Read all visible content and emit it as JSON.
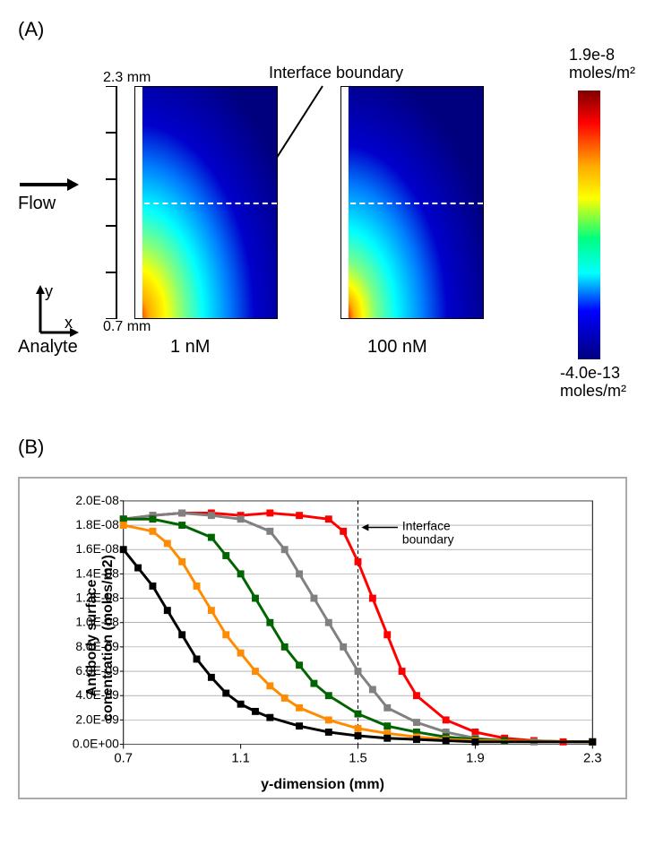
{
  "panelA": {
    "label": "(A)",
    "interface_label": "Interface boundary",
    "flow_label": "Flow",
    "y_top": "2.3 mm",
    "y_bottom": "0.7 mm",
    "analyte_label": "Analyte",
    "conc1": "1 nM",
    "conc2": "100 nM",
    "colorbar_top": "1.9e-8",
    "colorbar_top_unit": "moles/m²",
    "colorbar_bottom": "-4.0e-13",
    "colorbar_bottom_unit": "moles/m²",
    "heatmap_colors": {
      "top": "#00007f",
      "blue": "#0000ff",
      "cyan": "#00ffff",
      "yellow": "#ffff00",
      "red": "#ff0000",
      "darkred": "#7f0000"
    }
  },
  "panelB": {
    "label": "(B)",
    "ylabel": "Antibody surface\nconentration (moles/m2)",
    "xlabel": "y-dimension (mm)",
    "interface_label": "Interface",
    "interface_label2": "boundary",
    "interface_x": 1.5,
    "xlim": [
      0.7,
      2.3
    ],
    "ylim": [
      0,
      2e-08
    ],
    "xticks": [
      0.7,
      1.1,
      1.5,
      1.9,
      2.3
    ],
    "yticks": [
      "0.0E+00",
      "2.0E-09",
      "4.0E-09",
      "6.0E-09",
      "8.0E-09",
      "1.0E-08",
      "1.2E-08",
      "1.4E-08",
      "1.6E-08",
      "1.8E-08",
      "2.0E-08"
    ],
    "series": [
      {
        "color": "#ff0000",
        "points": [
          [
            0.7,
            1.85e-08
          ],
          [
            0.8,
            1.88e-08
          ],
          [
            0.9,
            1.9e-08
          ],
          [
            1.0,
            1.9e-08
          ],
          [
            1.1,
            1.88e-08
          ],
          [
            1.2,
            1.9e-08
          ],
          [
            1.3,
            1.88e-08
          ],
          [
            1.4,
            1.85e-08
          ],
          [
            1.45,
            1.75e-08
          ],
          [
            1.5,
            1.5e-08
          ],
          [
            1.55,
            1.2e-08
          ],
          [
            1.6,
            9e-09
          ],
          [
            1.65,
            6e-09
          ],
          [
            1.7,
            4e-09
          ],
          [
            1.8,
            2e-09
          ],
          [
            1.9,
            1e-09
          ],
          [
            2.0,
            5e-10
          ],
          [
            2.1,
            3e-10
          ],
          [
            2.2,
            2e-10
          ],
          [
            2.3,
            2e-10
          ]
        ]
      },
      {
        "color": "#808080",
        "points": [
          [
            0.7,
            1.85e-08
          ],
          [
            0.8,
            1.88e-08
          ],
          [
            0.9,
            1.9e-08
          ],
          [
            1.0,
            1.88e-08
          ],
          [
            1.1,
            1.85e-08
          ],
          [
            1.2,
            1.75e-08
          ],
          [
            1.25,
            1.6e-08
          ],
          [
            1.3,
            1.4e-08
          ],
          [
            1.35,
            1.2e-08
          ],
          [
            1.4,
            1e-08
          ],
          [
            1.45,
            8e-09
          ],
          [
            1.5,
            6e-09
          ],
          [
            1.55,
            4.5e-09
          ],
          [
            1.6,
            3e-09
          ],
          [
            1.7,
            1.8e-09
          ],
          [
            1.8,
            1e-09
          ],
          [
            1.9,
            5e-10
          ],
          [
            2.0,
            3e-10
          ],
          [
            2.1,
            2e-10
          ],
          [
            2.3,
            2e-10
          ]
        ]
      },
      {
        "color": "#006400",
        "points": [
          [
            0.7,
            1.85e-08
          ],
          [
            0.8,
            1.85e-08
          ],
          [
            0.9,
            1.8e-08
          ],
          [
            1.0,
            1.7e-08
          ],
          [
            1.05,
            1.55e-08
          ],
          [
            1.1,
            1.4e-08
          ],
          [
            1.15,
            1.2e-08
          ],
          [
            1.2,
            1e-08
          ],
          [
            1.25,
            8e-09
          ],
          [
            1.3,
            6.5e-09
          ],
          [
            1.35,
            5e-09
          ],
          [
            1.4,
            4e-09
          ],
          [
            1.5,
            2.5e-09
          ],
          [
            1.6,
            1.5e-09
          ],
          [
            1.7,
            1e-09
          ],
          [
            1.8,
            6e-10
          ],
          [
            1.9,
            4e-10
          ],
          [
            2.0,
            3e-10
          ],
          [
            2.3,
            2e-10
          ]
        ]
      },
      {
        "color": "#ff8c00",
        "points": [
          [
            0.7,
            1.8e-08
          ],
          [
            0.8,
            1.75e-08
          ],
          [
            0.85,
            1.65e-08
          ],
          [
            0.9,
            1.5e-08
          ],
          [
            0.95,
            1.3e-08
          ],
          [
            1.0,
            1.1e-08
          ],
          [
            1.05,
            9e-09
          ],
          [
            1.1,
            7.5e-09
          ],
          [
            1.15,
            6e-09
          ],
          [
            1.2,
            4.8e-09
          ],
          [
            1.25,
            3.8e-09
          ],
          [
            1.3,
            3e-09
          ],
          [
            1.4,
            2e-09
          ],
          [
            1.5,
            1.3e-09
          ],
          [
            1.6,
            9e-10
          ],
          [
            1.7,
            6e-10
          ],
          [
            1.8,
            4e-10
          ],
          [
            1.9,
            3e-10
          ],
          [
            2.3,
            2e-10
          ]
        ]
      },
      {
        "color": "#000000",
        "points": [
          [
            0.7,
            1.6e-08
          ],
          [
            0.75,
            1.45e-08
          ],
          [
            0.8,
            1.3e-08
          ],
          [
            0.85,
            1.1e-08
          ],
          [
            0.9,
            9e-09
          ],
          [
            0.95,
            7e-09
          ],
          [
            1.0,
            5.5e-09
          ],
          [
            1.05,
            4.2e-09
          ],
          [
            1.1,
            3.3e-09
          ],
          [
            1.15,
            2.7e-09
          ],
          [
            1.2,
            2.2e-09
          ],
          [
            1.3,
            1.5e-09
          ],
          [
            1.4,
            1e-09
          ],
          [
            1.5,
            7e-10
          ],
          [
            1.6,
            5e-10
          ],
          [
            1.7,
            4e-10
          ],
          [
            1.8,
            3e-10
          ],
          [
            1.9,
            2e-10
          ],
          [
            2.3,
            2e-10
          ]
        ]
      }
    ],
    "grid_color": "#888888",
    "marker_size": 4
  }
}
